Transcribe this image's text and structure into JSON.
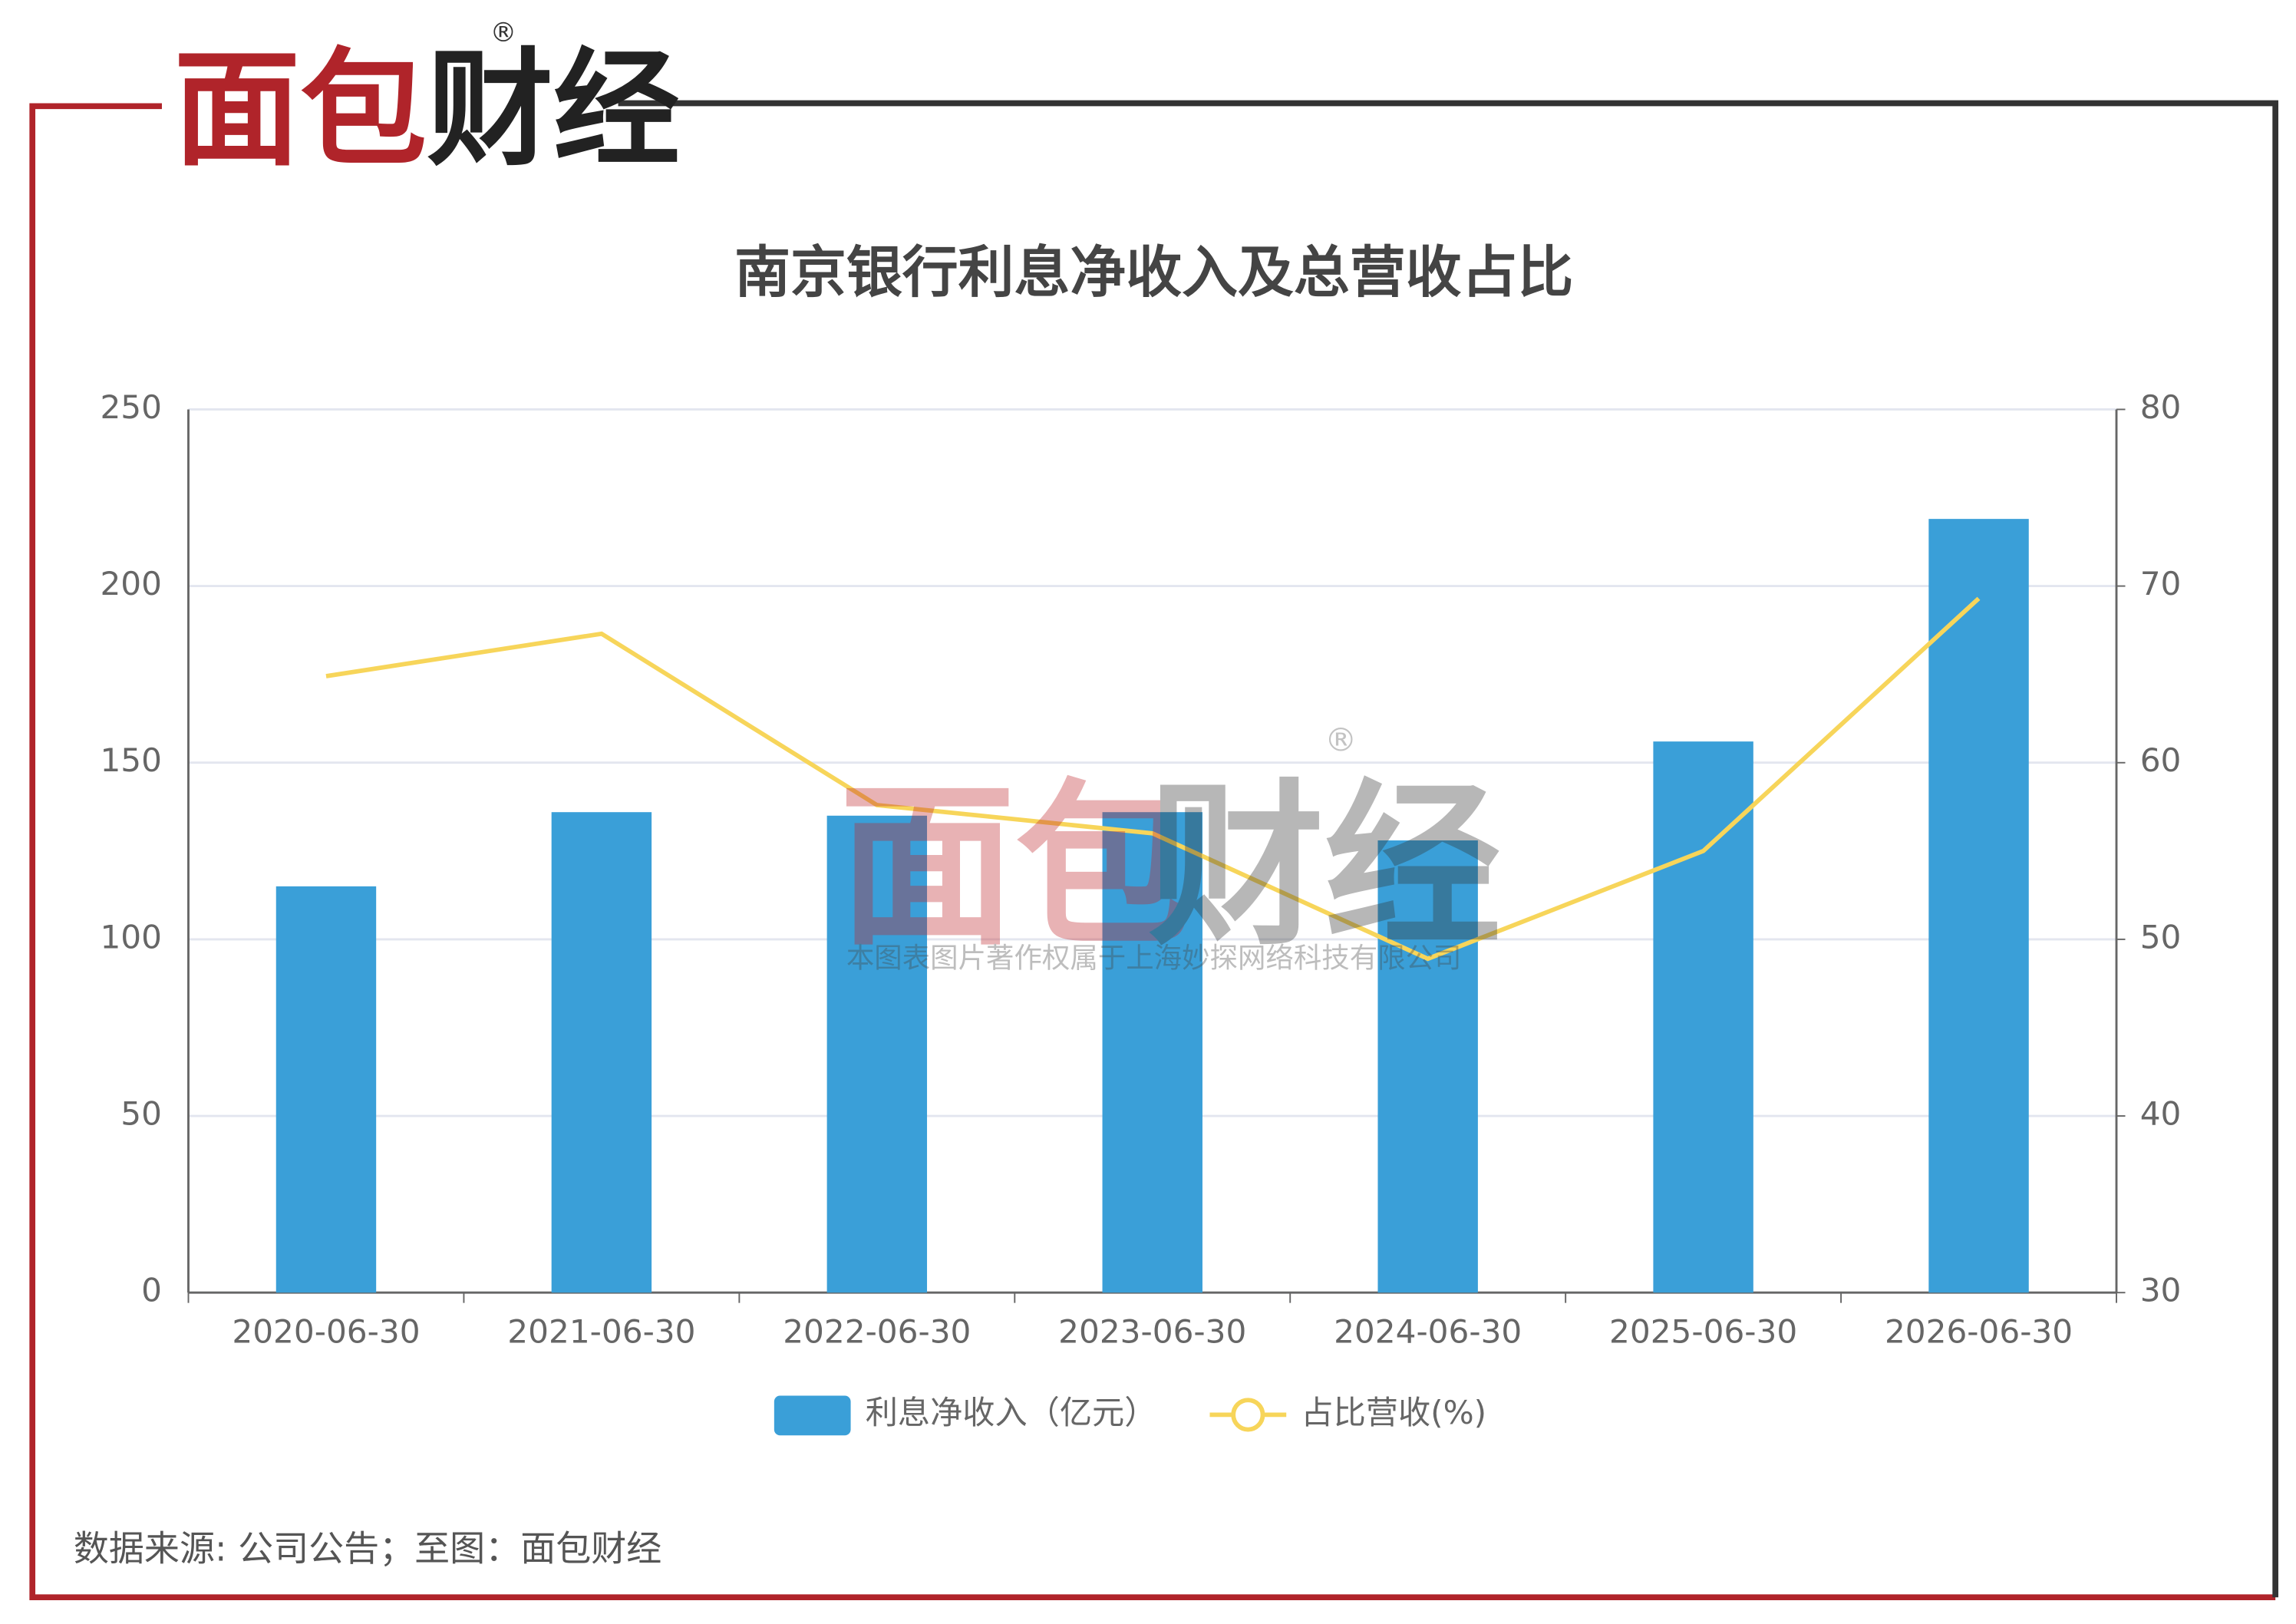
{
  "logo": {
    "parts": [
      "面包",
      "财经"
    ],
    "mark": "®"
  },
  "watermark": {
    "parts": [
      "面包",
      "财经"
    ],
    "mark": "®",
    "note": "本图表图片著作权属于上海妙探网络科技有限公司"
  },
  "source": "数据来源: 公司公告；至图：面包财经",
  "chart_data": {
    "type": "bar-line",
    "title": "南京银行利息净收入及总营收占比",
    "categories": [
      "2020-06-30",
      "2021-06-30",
      "2022-06-30",
      "2023-06-30",
      "2024-06-30",
      "2025-06-30",
      "2026-06-30"
    ],
    "series": [
      {
        "name": "利息净收入（亿元）",
        "type": "bar",
        "color": "#3a9fd8",
        "values": [
          115,
          136,
          135,
          136,
          128,
          156,
          219
        ]
      },
      {
        "name": "占比营收(%)",
        "type": "line",
        "axis": "y2",
        "color": "#f7d55a",
        "values": [
          64.9,
          67.3,
          57.6,
          56,
          48.9,
          55,
          69.3
        ]
      }
    ],
    "ylim": [
      0,
      250
    ],
    "yticks": [
      0,
      50,
      100,
      150,
      200,
      250
    ],
    "y2lim": [
      30,
      80
    ],
    "y2ticks": [
      30,
      40,
      50,
      60,
      70,
      80
    ],
    "grid": true,
    "legend": "bottom"
  }
}
